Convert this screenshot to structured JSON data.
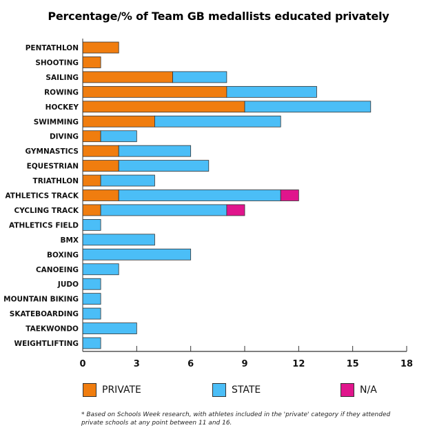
{
  "chart_data": {
    "type": "bar",
    "orientation": "horizontal",
    "stacked": true,
    "title": "Percentage/% of Team GB medallists educated privately",
    "categories": [
      "PENTATHLON",
      "SHOOTING",
      "SAILING",
      "ROWING",
      "HOCKEY",
      "SWIMMING",
      "DIVING",
      "GYMNASTICS",
      "EQUESTRIAN",
      "TRIATHLON",
      "ATHLETICS TRACK",
      "CYCLING TRACK",
      "ATHLETICS FIELD",
      "BMX",
      "BOXING",
      "CANOEING",
      "JUDO",
      "MOUNTAIN BIKING",
      "SKATEBOARDING",
      "TAEKWONDO",
      "WEIGHTLIFTING"
    ],
    "series": [
      {
        "name": "PRIVATE",
        "color": "#f07d0f",
        "values": [
          2,
          1,
          5,
          8,
          9,
          4,
          1,
          2,
          2,
          1,
          2,
          1,
          0,
          0,
          0,
          0,
          0,
          0,
          0,
          0,
          0
        ]
      },
      {
        "name": "STATE",
        "color": "#4bbef7",
        "values": [
          0,
          0,
          3,
          5,
          7,
          7,
          2,
          4,
          5,
          3,
          9,
          7,
          1,
          4,
          6,
          2,
          1,
          1,
          1,
          3,
          1
        ]
      },
      {
        "name": "N/A",
        "color": "#e0158c",
        "values": [
          0,
          0,
          0,
          0,
          0,
          0,
          0,
          0,
          0,
          0,
          1,
          1,
          0,
          0,
          0,
          0,
          0,
          0,
          0,
          0,
          0
        ]
      }
    ],
    "xlim": [
      0,
      18
    ],
    "xticks": [
      "0",
      "3",
      "6",
      "9",
      "12",
      "15",
      "18"
    ],
    "grid": false,
    "legend_position": "bottom"
  },
  "footnote": "* Based on Schools Week research, with athletes included in the 'private' category if they attended private schools at any point between 11 and 16."
}
